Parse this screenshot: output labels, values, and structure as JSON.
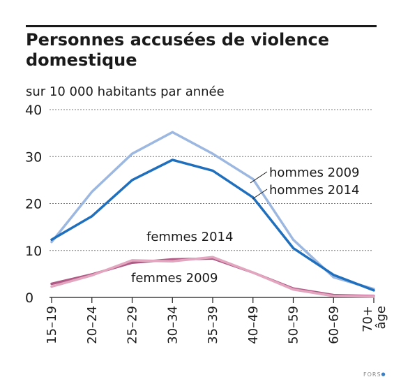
{
  "title": "Personnes accusées de violence domestique",
  "subtitle": "sur 10 000 habitants par année",
  "credit": "FORS",
  "colors": {
    "hommes2009": "#9db8e0",
    "hommes2014": "#1f6fbd",
    "femmes2009": "#e2a6bf",
    "femmes2014": "#b05a86",
    "grid": "#777777",
    "text": "#1a1a1a"
  },
  "chart_data": {
    "type": "line",
    "title": "Personnes accusées de violence domestique",
    "subtitle": "sur 10 000 habitants par année",
    "categories": [
      "15–19",
      "20–24",
      "25–29",
      "30–34",
      "35–39",
      "40–49",
      "50–59",
      "60–69",
      "70+ âge"
    ],
    "category_lines": [
      [
        "15–19"
      ],
      [
        "20–24"
      ],
      [
        "25–29"
      ],
      [
        "30–34"
      ],
      [
        "35–39"
      ],
      [
        "40–49"
      ],
      [
        "50–59"
      ],
      [
        "60–69"
      ],
      [
        "70+",
        "âge"
      ]
    ],
    "yticks": [
      0,
      10,
      20,
      30,
      40
    ],
    "ylim": [
      0,
      40
    ],
    "grid": "horizontal dashed",
    "series": [
      {
        "name": "hommes 2009",
        "color": "#9db8e0",
        "values": [
          11.8,
          22.5,
          30.6,
          35.2,
          30.6,
          25.2,
          12.3,
          4.3,
          1.8
        ]
      },
      {
        "name": "hommes 2014",
        "color": "#1f6fbd",
        "values": [
          12.3,
          17.3,
          25.0,
          29.3,
          27.0,
          21.3,
          10.5,
          4.8,
          1.5
        ]
      },
      {
        "name": "femmes 2014",
        "color": "#b05a86",
        "values": [
          2.9,
          4.9,
          7.4,
          8.1,
          8.3,
          5.3,
          1.9,
          0.5,
          0.3
        ]
      },
      {
        "name": "femmes 2009",
        "color": "#e2a6bf",
        "values": [
          2.3,
          4.7,
          7.9,
          7.7,
          8.6,
          5.3,
          1.7,
          0.3,
          0.2
        ]
      }
    ],
    "series_labels": [
      "hommes 2009",
      "hommes 2014",
      "femmes 2014",
      "femmes 2009"
    ]
  }
}
